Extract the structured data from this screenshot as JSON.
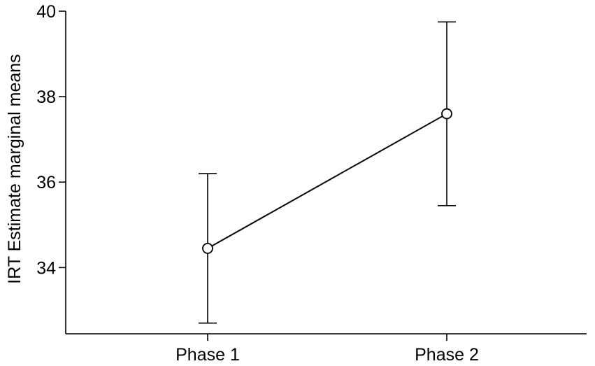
{
  "chart_data": {
    "type": "line",
    "title": "",
    "xlabel": "",
    "ylabel": "IRT Estimate marginal means",
    "categories": [
      "Phase 1",
      "Phase 2"
    ],
    "series": [
      {
        "values": [
          34.45,
          37.6
        ],
        "error_lower": [
          32.7,
          35.45
        ],
        "error_upper": [
          36.2,
          39.75
        ],
        "marker": "open-circle"
      }
    ],
    "yticks": [
      34,
      36,
      38,
      40
    ],
    "ylim": [
      32.45,
      40
    ],
    "grid": false,
    "legend": "none",
    "colors": {
      "line": "#000000",
      "marker_fill": "#ffffff"
    }
  }
}
